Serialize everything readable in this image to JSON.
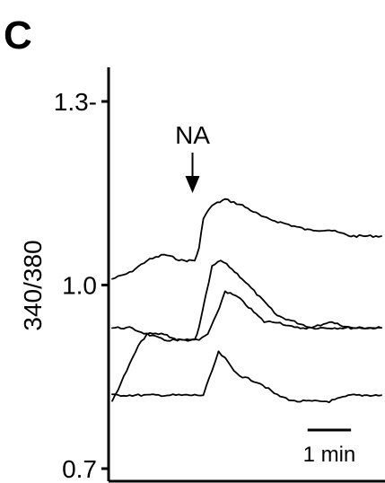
{
  "panel": {
    "letter": "C"
  },
  "chart_data": {
    "type": "line",
    "ylabel": "340/380",
    "xlabel": "",
    "ylim": [
      0.7,
      1.3
    ],
    "yticks": [
      {
        "value": 1.3,
        "label": "1.3-"
      },
      {
        "value": 1.0,
        "label": "1.0"
      },
      {
        "value": 0.7,
        "label": "0.7"
      }
    ],
    "x_unit": "min",
    "xlim": [
      0,
      6.2
    ],
    "annotation": {
      "label": "NA",
      "x": 1.85
    },
    "scalebar": {
      "label": "1 min",
      "x_start": 4.5,
      "length": 1.0
    },
    "series": [
      {
        "x": [
          0,
          0.4,
          0.8,
          1.2,
          1.6,
          1.9,
          2.0,
          2.1,
          2.3,
          2.6,
          3.0,
          3.5,
          4.0,
          4.5,
          5.0,
          5.5,
          6.2
        ],
        "y": [
          1.01,
          1.02,
          1.04,
          1.05,
          1.04,
          1.04,
          1.06,
          1.11,
          1.13,
          1.14,
          1.13,
          1.11,
          1.1,
          1.09,
          1.09,
          1.08,
          1.08
        ]
      },
      {
        "x": [
          0,
          0.4,
          0.8,
          1.2,
          1.6,
          1.9,
          2.0,
          2.15,
          2.3,
          2.5,
          2.7,
          3.0,
          3.4,
          3.8,
          4.2,
          4.6,
          5.0,
          5.5,
          6.2
        ],
        "y": [
          0.93,
          0.93,
          0.92,
          0.91,
          0.91,
          0.91,
          0.93,
          0.98,
          1.03,
          1.04,
          1.03,
          1.01,
          0.98,
          0.95,
          0.94,
          0.93,
          0.93,
          0.93,
          0.93
        ]
      },
      {
        "x": [
          0,
          0.2,
          0.4,
          0.6,
          0.8,
          1.0,
          1.2,
          1.5,
          1.8,
          2.0,
          2.2,
          2.4,
          2.6,
          2.9,
          3.2,
          3.5,
          3.8,
          4.2,
          4.6,
          5.0,
          5.5,
          6.2
        ],
        "y": [
          0.81,
          0.84,
          0.87,
          0.9,
          0.92,
          0.92,
          0.92,
          0.91,
          0.91,
          0.91,
          0.92,
          0.95,
          0.99,
          0.98,
          0.96,
          0.94,
          0.94,
          0.93,
          0.93,
          0.94,
          0.93,
          0.93
        ]
      },
      {
        "x": [
          0,
          0.4,
          0.8,
          1.2,
          1.6,
          1.9,
          2.1,
          2.3,
          2.45,
          2.6,
          2.8,
          3.0,
          3.4,
          3.8,
          4.2,
          4.6,
          5.0,
          5.5,
          6.2
        ],
        "y": [
          0.82,
          0.82,
          0.82,
          0.82,
          0.82,
          0.82,
          0.82,
          0.86,
          0.89,
          0.88,
          0.86,
          0.85,
          0.84,
          0.82,
          0.81,
          0.81,
          0.81,
          0.82,
          0.82
        ]
      }
    ]
  }
}
